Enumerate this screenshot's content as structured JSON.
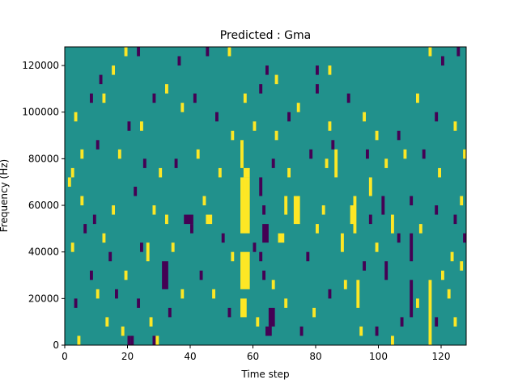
{
  "chart_data": {
    "type": "heatmap",
    "title": "Predicted : Gma",
    "xlabel": "Time step",
    "ylabel": "Frequency (Hz)",
    "xlim": [
      0,
      128
    ],
    "ylim": [
      0,
      128000
    ],
    "x_ticks": [
      0,
      20,
      40,
      60,
      80,
      100,
      120
    ],
    "y_ticks": [
      0,
      20000,
      40000,
      60000,
      80000,
      100000,
      120000
    ],
    "y_tick_labels": [
      "0",
      "20000",
      "40000",
      "60000",
      "80000",
      "100000",
      "120000"
    ],
    "grid": false,
    "legend": "none",
    "colormap": "viridis",
    "colors": {
      "background": "#21918c",
      "high": "#fde725",
      "low": "#440154"
    },
    "freq_bin_hz": 4000,
    "cells_note": "each cell = [time_step_start, time_step_end, freq_start_hz, freq_end_hz, level]; level 1=high (yellow), -1=low (purple)",
    "cells": [
      [
        56,
        59,
        48000,
        72000,
        1
      ],
      [
        56,
        59,
        24000,
        40000,
        1
      ],
      [
        56,
        58,
        12000,
        20000,
        1
      ],
      [
        57,
        59,
        72000,
        76000,
        1
      ],
      [
        56,
        57,
        76000,
        88000,
        1
      ],
      [
        57,
        58,
        64000,
        72000,
        1
      ],
      [
        73,
        75,
        52000,
        64000,
        1
      ],
      [
        64,
        66,
        4000,
        8000,
        -1
      ],
      [
        65,
        67,
        8000,
        16000,
        -1
      ],
      [
        63,
        65,
        44000,
        52000,
        -1
      ],
      [
        62,
        63,
        64000,
        72000,
        -1
      ],
      [
        68,
        70,
        44000,
        48000,
        1
      ],
      [
        70,
        71,
        56000,
        64000,
        1
      ],
      [
        63,
        64,
        56000,
        60000,
        -1
      ],
      [
        66,
        67,
        24000,
        28000,
        1
      ],
      [
        62,
        63,
        36000,
        40000,
        -1
      ],
      [
        63,
        64,
        28000,
        32000,
        -1
      ],
      [
        92,
        93,
        48000,
        64000,
        1
      ],
      [
        93,
        94,
        16000,
        28000,
        1
      ],
      [
        94,
        95,
        4000,
        8000,
        1
      ],
      [
        91,
        92,
        52000,
        60000,
        1
      ],
      [
        86,
        87,
        72000,
        84000,
        1
      ],
      [
        85,
        86,
        84000,
        88000,
        -1
      ],
      [
        88,
        89,
        40000,
        48000,
        1
      ],
      [
        97,
        98,
        64000,
        72000,
        1
      ],
      [
        101,
        102,
        56000,
        64000,
        -1
      ],
      [
        102,
        103,
        28000,
        36000,
        -1
      ],
      [
        104,
        105,
        48000,
        56000,
        1
      ],
      [
        110,
        111,
        60000,
        64000,
        -1
      ],
      [
        110,
        111,
        36000,
        48000,
        -1
      ],
      [
        110,
        111,
        12000,
        28000,
        -1
      ],
      [
        116,
        117,
        0,
        28000,
        1
      ],
      [
        120,
        121,
        28000,
        32000,
        1
      ],
      [
        127,
        128,
        44000,
        48000,
        -1
      ],
      [
        124,
        125,
        52000,
        56000,
        -1
      ],
      [
        123,
        124,
        36000,
        40000,
        1
      ],
      [
        32,
        33,
        52000,
        56000,
        1
      ],
      [
        31,
        33,
        24000,
        36000,
        -1
      ],
      [
        38,
        41,
        52000,
        56000,
        -1
      ],
      [
        45,
        47,
        52000,
        56000,
        1
      ],
      [
        40,
        41,
        48000,
        52000,
        -1
      ],
      [
        34,
        35,
        40000,
        44000,
        1
      ],
      [
        26,
        27,
        36000,
        44000,
        1
      ],
      [
        24,
        25,
        40000,
        44000,
        -1
      ],
      [
        20,
        21,
        0,
        4000,
        -1
      ],
      [
        21,
        22,
        0,
        4000,
        -1
      ],
      [
        28,
        29,
        0,
        4000,
        -1
      ],
      [
        29,
        30,
        0,
        4000,
        1
      ],
      [
        3,
        4,
        16000,
        20000,
        -1
      ],
      [
        4,
        5,
        0,
        4000,
        1
      ],
      [
        2,
        3,
        72000,
        76000,
        1
      ],
      [
        1,
        2,
        68000,
        72000,
        1
      ],
      [
        5,
        6,
        60000,
        64000,
        1
      ],
      [
        9,
        10,
        52000,
        56000,
        -1
      ],
      [
        12,
        13,
        44000,
        48000,
        1
      ],
      [
        14,
        15,
        36000,
        40000,
        -1
      ],
      [
        10,
        11,
        20000,
        24000,
        1
      ],
      [
        13,
        14,
        8000,
        12000,
        1
      ],
      [
        16,
        17,
        20000,
        24000,
        -1
      ],
      [
        19,
        20,
        28000,
        32000,
        1
      ],
      [
        8,
        9,
        104000,
        108000,
        -1
      ],
      [
        12,
        13,
        104000,
        108000,
        1
      ],
      [
        20,
        21,
        92000,
        96000,
        -1
      ],
      [
        24,
        25,
        92000,
        96000,
        1
      ],
      [
        28,
        29,
        104000,
        108000,
        -1
      ],
      [
        32,
        33,
        108000,
        112000,
        1
      ],
      [
        37,
        38,
        100000,
        104000,
        1
      ],
      [
        41,
        42,
        104000,
        108000,
        -1
      ],
      [
        48,
        49,
        96000,
        100000,
        -1
      ],
      [
        53,
        54,
        88000,
        92000,
        1
      ],
      [
        57,
        58,
        104000,
        108000,
        1
      ],
      [
        60,
        61,
        92000,
        96000,
        1
      ],
      [
        62,
        63,
        108000,
        112000,
        -1
      ],
      [
        67,
        68,
        88000,
        92000,
        1
      ],
      [
        71,
        72,
        96000,
        100000,
        -1
      ],
      [
        74,
        75,
        100000,
        104000,
        1
      ],
      [
        80,
        81,
        108000,
        112000,
        -1
      ],
      [
        84,
        85,
        92000,
        96000,
        1
      ],
      [
        90,
        91,
        104000,
        108000,
        -1
      ],
      [
        95,
        96,
        96000,
        100000,
        1
      ],
      [
        99,
        100,
        88000,
        92000,
        1
      ],
      [
        106,
        107,
        88000,
        92000,
        -1
      ],
      [
        112,
        113,
        104000,
        108000,
        1
      ],
      [
        118,
        119,
        96000,
        100000,
        -1
      ],
      [
        124,
        125,
        92000,
        96000,
        1
      ],
      [
        120,
        121,
        120000,
        124000,
        -1
      ],
      [
        116,
        117,
        124000,
        128000,
        1
      ],
      [
        125,
        126,
        124000,
        128000,
        -1
      ],
      [
        19,
        20,
        124000,
        128000,
        1
      ],
      [
        23,
        24,
        124000,
        128000,
        -1
      ],
      [
        45,
        46,
        124000,
        128000,
        -1
      ],
      [
        52,
        53,
        124000,
        128000,
        1
      ],
      [
        64,
        65,
        116000,
        120000,
        -1
      ],
      [
        80,
        81,
        116000,
        120000,
        -1
      ],
      [
        84,
        85,
        116000,
        120000,
        1
      ],
      [
        67,
        68,
        112000,
        116000,
        1
      ],
      [
        36,
        37,
        120000,
        124000,
        -1
      ],
      [
        15,
        16,
        116000,
        120000,
        1
      ],
      [
        11,
        12,
        112000,
        116000,
        -1
      ],
      [
        3,
        4,
        96000,
        100000,
        1
      ],
      [
        5,
        6,
        80000,
        84000,
        1
      ],
      [
        10,
        11,
        84000,
        88000,
        -1
      ],
      [
        17,
        18,
        80000,
        84000,
        1
      ],
      [
        25,
        26,
        76000,
        80000,
        -1
      ],
      [
        30,
        31,
        72000,
        76000,
        1
      ],
      [
        35,
        36,
        76000,
        80000,
        -1
      ],
      [
        42,
        43,
        80000,
        84000,
        1
      ],
      [
        49,
        50,
        72000,
        76000,
        1
      ],
      [
        66,
        67,
        76000,
        80000,
        -1
      ],
      [
        71,
        72,
        72000,
        76000,
        1
      ],
      [
        78,
        79,
        80000,
        84000,
        -1
      ],
      [
        83,
        84,
        76000,
        80000,
        1
      ],
      [
        96,
        97,
        80000,
        84000,
        -1
      ],
      [
        102,
        103,
        76000,
        80000,
        1
      ],
      [
        108,
        109,
        80000,
        84000,
        1
      ],
      [
        114,
        115,
        80000,
        84000,
        -1
      ],
      [
        119,
        120,
        72000,
        76000,
        1
      ],
      [
        127,
        128,
        80000,
        84000,
        1
      ],
      [
        126,
        127,
        60000,
        64000,
        1
      ],
      [
        118,
        119,
        56000,
        60000,
        -1
      ],
      [
        113,
        114,
        48000,
        52000,
        1
      ],
      [
        106,
        107,
        44000,
        48000,
        -1
      ],
      [
        99,
        100,
        40000,
        44000,
        1
      ],
      [
        95,
        96,
        32000,
        36000,
        -1
      ],
      [
        89,
        90,
        24000,
        28000,
        1
      ],
      [
        84,
        85,
        20000,
        24000,
        -1
      ],
      [
        79,
        80,
        12000,
        16000,
        1
      ],
      [
        75,
        76,
        4000,
        8000,
        -1
      ],
      [
        70,
        71,
        16000,
        20000,
        1
      ],
      [
        52,
        53,
        12000,
        16000,
        -1
      ],
      [
        47,
        48,
        20000,
        24000,
        1
      ],
      [
        43,
        44,
        28000,
        32000,
        -1
      ],
      [
        37,
        38,
        20000,
        24000,
        1
      ],
      [
        33,
        34,
        12000,
        16000,
        -1
      ],
      [
        27,
        28,
        8000,
        12000,
        1
      ],
      [
        23,
        24,
        16000,
        20000,
        -1
      ],
      [
        18,
        19,
        4000,
        8000,
        1
      ],
      [
        8,
        9,
        28000,
        32000,
        -1
      ],
      [
        2,
        3,
        40000,
        44000,
        1
      ],
      [
        6,
        7,
        48000,
        52000,
        -1
      ],
      [
        15,
        16,
        56000,
        60000,
        1
      ],
      [
        22,
        23,
        64000,
        68000,
        -1
      ],
      [
        28,
        29,
        56000,
        60000,
        1
      ],
      [
        44,
        45,
        60000,
        64000,
        1
      ],
      [
        50,
        51,
        44000,
        48000,
        -1
      ],
      [
        53,
        54,
        36000,
        40000,
        1
      ],
      [
        60,
        61,
        40000,
        44000,
        -1
      ],
      [
        61,
        62,
        8000,
        12000,
        1
      ],
      [
        77,
        78,
        36000,
        40000,
        -1
      ],
      [
        80,
        81,
        48000,
        52000,
        1
      ],
      [
        82,
        83,
        56000,
        60000,
        1
      ],
      [
        97,
        98,
        52000,
        56000,
        -1
      ],
      [
        99,
        100,
        4000,
        8000,
        -1
      ],
      [
        104,
        105,
        0,
        4000,
        1
      ],
      [
        107,
        108,
        8000,
        12000,
        -1
      ],
      [
        112,
        113,
        16000,
        20000,
        1
      ],
      [
        118,
        119,
        8000,
        12000,
        -1
      ],
      [
        122,
        123,
        20000,
        24000,
        1
      ],
      [
        126,
        127,
        32000,
        36000,
        1
      ],
      [
        124,
        125,
        8000,
        12000,
        1
      ]
    ]
  }
}
